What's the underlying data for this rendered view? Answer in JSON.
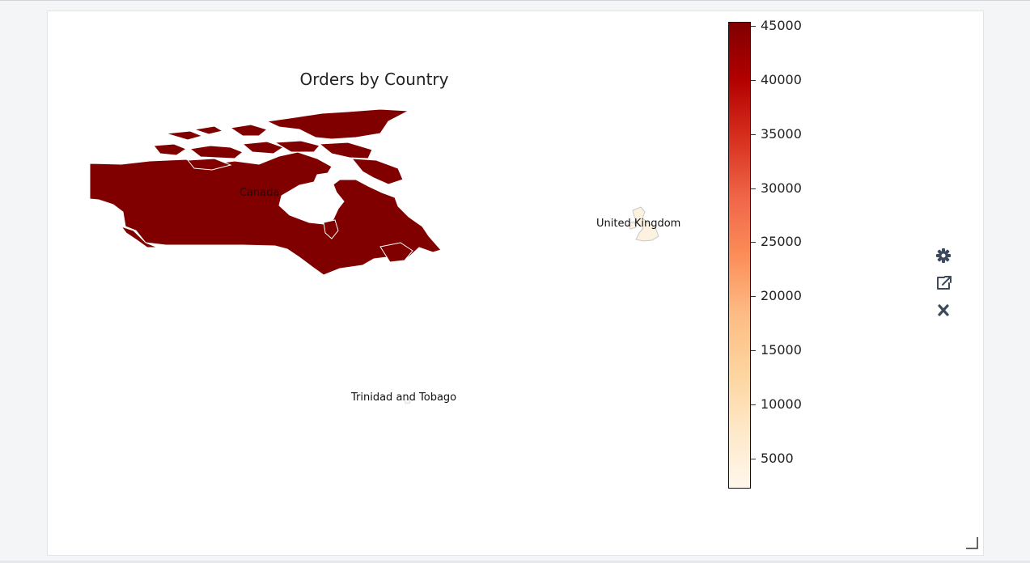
{
  "chart_data": {
    "type": "choropleth",
    "title": "Orders by Country",
    "colormap": "OrRd",
    "colorbar": {
      "range": [
        2200,
        45400
      ],
      "ticks": [
        5000,
        10000,
        15000,
        20000,
        25000,
        30000,
        35000,
        40000,
        45000
      ],
      "tick_labels": [
        "5000",
        "10000",
        "15000",
        "20000",
        "25000",
        "30000",
        "35000",
        "40000",
        "45000"
      ]
    },
    "regions": [
      {
        "name": "Canada",
        "value": 45400,
        "color": "#800000"
      },
      {
        "name": "United Kingdom",
        "value": 2400,
        "color": "#fdf1df"
      },
      {
        "name": "Trinidad and Tobago",
        "value": 2200,
        "color": "#fff7ec"
      }
    ]
  },
  "toolbar": {
    "settings_icon": "gear-icon",
    "popout_icon": "external-link-icon",
    "close_icon": "close-icon"
  }
}
